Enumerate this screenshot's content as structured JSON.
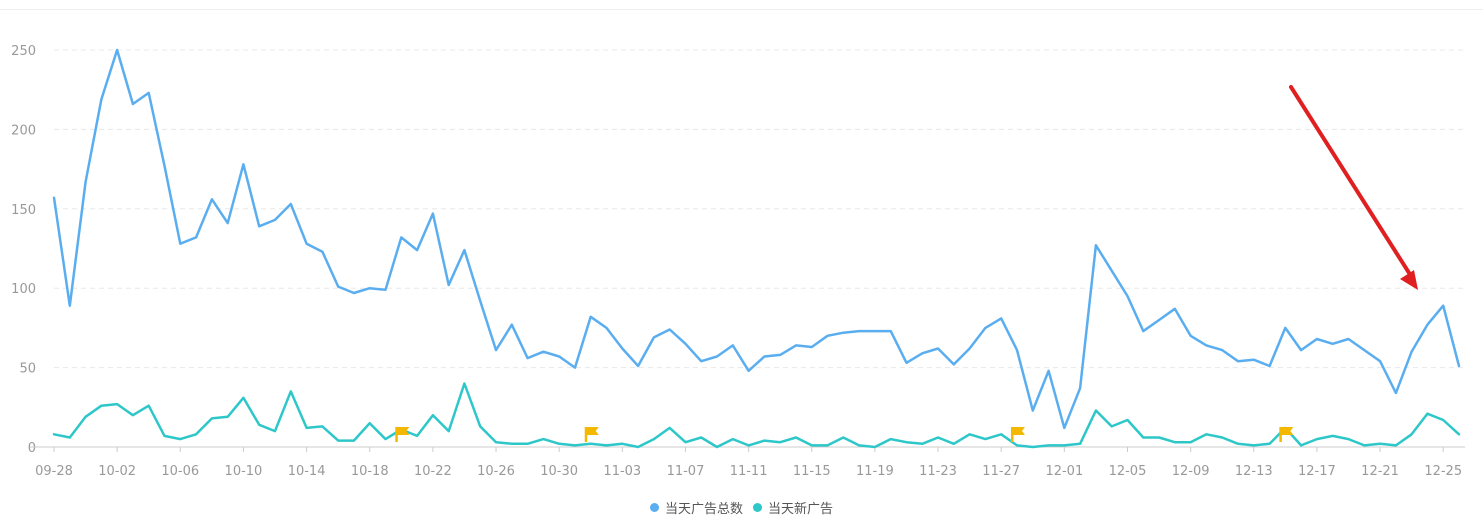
{
  "chart_data": {
    "type": "line",
    "title": "",
    "xlabel": "",
    "ylabel": "",
    "ylim": [
      0,
      270
    ],
    "yticks": [
      0,
      50,
      100,
      150,
      200,
      250
    ],
    "grid": true,
    "legend_position": "bottom",
    "colors": {
      "total": "#5aaef0",
      "new": "#2ec7c9",
      "flag": "#f5b800",
      "arrow": "#e02020"
    },
    "x": [
      "09-28",
      "09-29",
      "09-30",
      "10-01",
      "10-02",
      "10-03",
      "10-04",
      "10-05",
      "10-06",
      "10-07",
      "10-08",
      "10-09",
      "10-10",
      "10-11",
      "10-12",
      "10-13",
      "10-14",
      "10-15",
      "10-16",
      "10-17",
      "10-18",
      "10-19",
      "10-20",
      "10-21",
      "10-22",
      "10-23",
      "10-24",
      "10-25",
      "10-26",
      "10-27",
      "10-28",
      "10-29",
      "10-30",
      "10-31",
      "11-01",
      "11-02",
      "11-03",
      "11-04",
      "11-05",
      "11-06",
      "11-07",
      "11-08",
      "11-09",
      "11-10",
      "11-11",
      "11-12",
      "11-13",
      "11-14",
      "11-15",
      "11-16",
      "11-17",
      "11-18",
      "11-19",
      "11-20",
      "11-21",
      "11-22",
      "11-23",
      "11-24",
      "11-25",
      "11-26",
      "11-27",
      "11-28",
      "11-29",
      "11-30",
      "12-01",
      "12-02",
      "12-03",
      "12-04",
      "12-05",
      "12-06",
      "12-07",
      "12-08",
      "12-09",
      "12-10",
      "12-11",
      "12-12",
      "12-13",
      "12-14",
      "12-15",
      "12-16",
      "12-17",
      "12-18",
      "12-19",
      "12-20",
      "12-21",
      "12-22",
      "12-23",
      "12-24",
      "12-25",
      "12-26"
    ],
    "xticks": [
      "09-28",
      "10-02",
      "10-06",
      "10-10",
      "10-14",
      "10-18",
      "10-22",
      "10-26",
      "10-30",
      "11-03",
      "11-07",
      "11-11",
      "11-15",
      "11-19",
      "11-23",
      "11-27",
      "12-01",
      "12-05",
      "12-09",
      "12-13",
      "12-17",
      "12-21",
      "12-25"
    ],
    "series": [
      {
        "name": "当天广告总数",
        "values": [
          157,
          89,
          167,
          219,
          250,
          216,
          223,
          177,
          128,
          132,
          156,
          141,
          178,
          139,
          143,
          153,
          128,
          123,
          101,
          97,
          100,
          99,
          132,
          124,
          147,
          102,
          124,
          92,
          61,
          77,
          56,
          60,
          57,
          50,
          82,
          75,
          62,
          51,
          69,
          74,
          65,
          54,
          57,
          64,
          48,
          57,
          58,
          64,
          63,
          70,
          72,
          73,
          73,
          73,
          53,
          59,
          62,
          52,
          62,
          75,
          81,
          61,
          23,
          48,
          12,
          37,
          127,
          111,
          95,
          73,
          80,
          87,
          70,
          64,
          61,
          54,
          55,
          51,
          75,
          61,
          68,
          65,
          68,
          61,
          54,
          34,
          60,
          77,
          89,
          51
        ]
      },
      {
        "name": "当天新广告",
        "values": [
          8,
          6,
          19,
          26,
          27,
          20,
          26,
          7,
          5,
          8,
          18,
          19,
          31,
          14,
          10,
          35,
          12,
          13,
          4,
          4,
          15,
          5,
          11,
          7,
          20,
          10,
          40,
          13,
          3,
          2,
          2,
          5,
          2,
          1,
          2,
          1,
          2,
          0,
          5,
          12,
          3,
          6,
          0,
          5,
          1,
          4,
          3,
          6,
          1,
          1,
          6,
          1,
          0,
          5,
          3,
          2,
          6,
          2,
          8,
          5,
          8,
          1,
          0,
          1,
          1,
          2,
          23,
          13,
          17,
          6,
          6,
          3,
          3,
          8,
          6,
          2,
          1,
          2,
          12,
          1,
          5,
          7,
          5,
          1,
          2,
          1,
          8,
          21,
          17,
          8
        ]
      }
    ],
    "flags": [
      "10-20",
      "11-01",
      "11-28",
      "12-15"
    ]
  }
}
